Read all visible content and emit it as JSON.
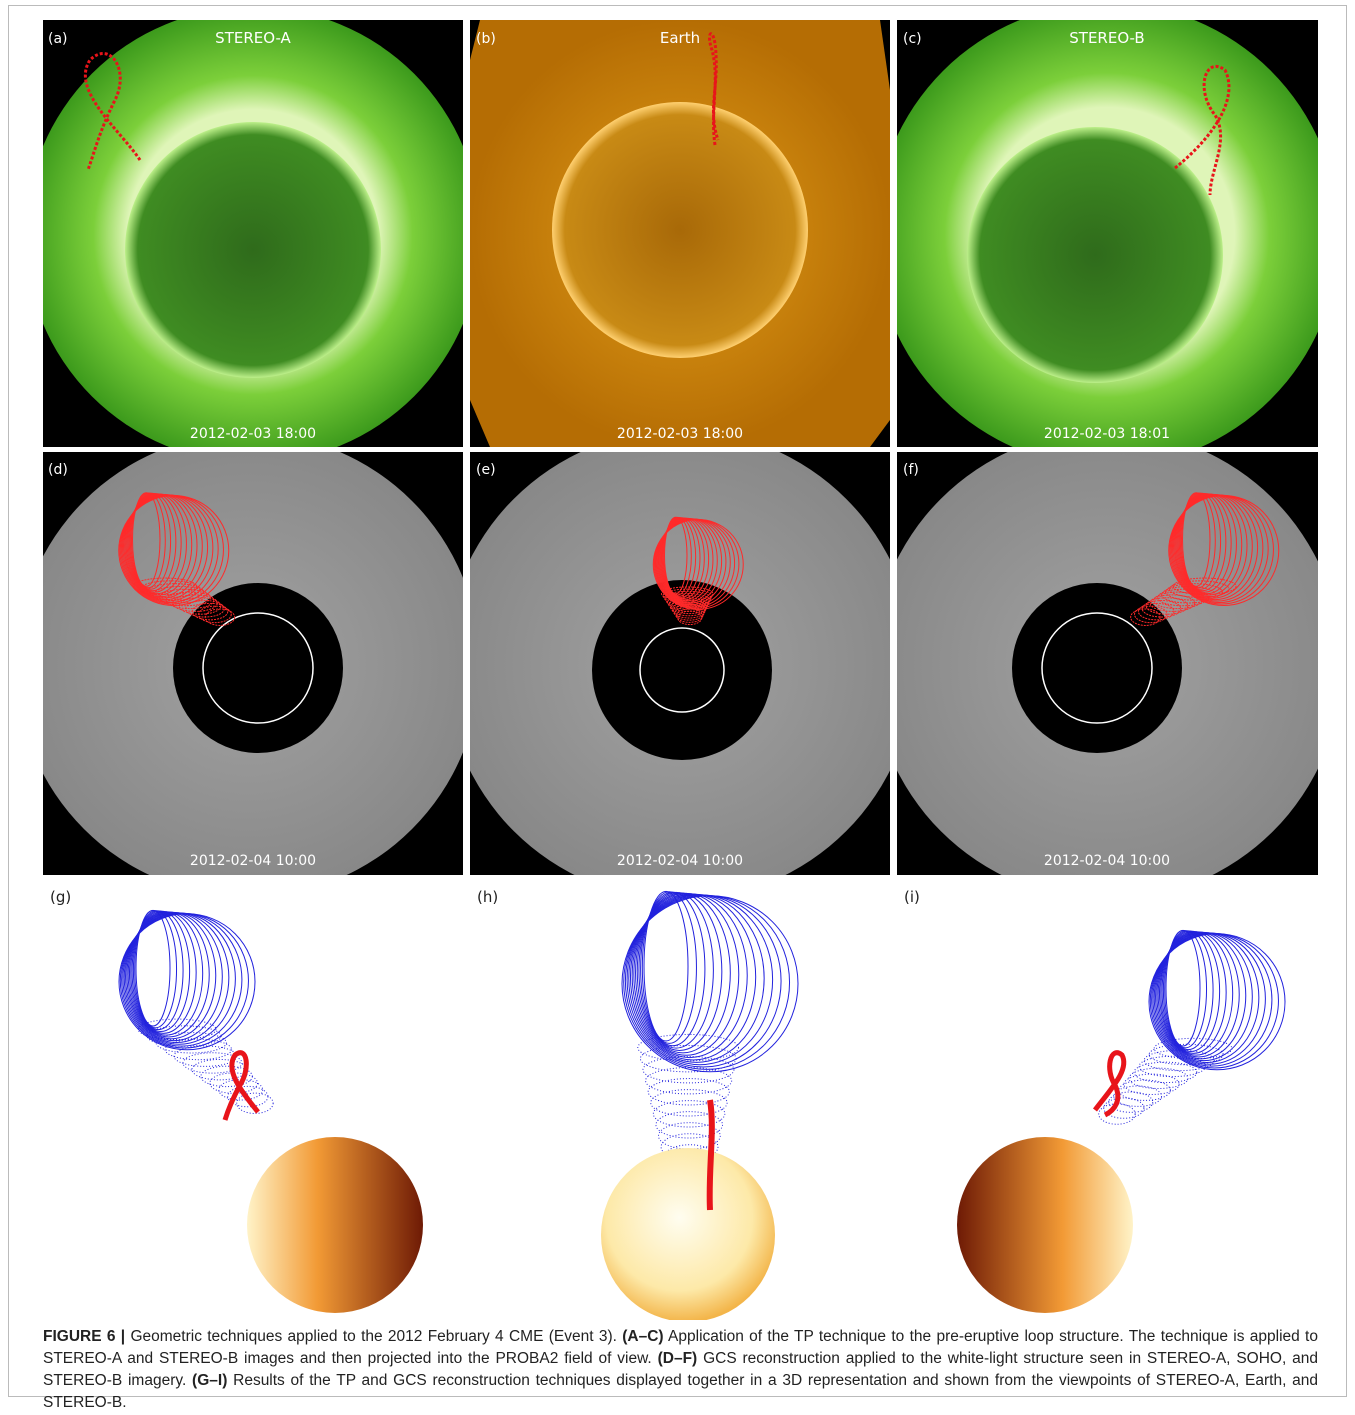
{
  "figure": {
    "panels": [
      {
        "label": "(a)",
        "title": "STEREO-A",
        "timestamp": "2012-02-03 18:00"
      },
      {
        "label": "(b)",
        "title": "Earth",
        "timestamp": "2012-02-03 18:00"
      },
      {
        "label": "(c)",
        "title": "STEREO-B",
        "timestamp": "2012-02-03 18:01"
      },
      {
        "label": "(d)",
        "timestamp": "2012-02-04 10:00"
      },
      {
        "label": "(e)",
        "timestamp": "2012-02-04 10:00"
      },
      {
        "label": "(f)",
        "timestamp": "2012-02-04 10:00"
      },
      {
        "label": "(g)"
      },
      {
        "label": "(h)"
      },
      {
        "label": "(i)"
      }
    ],
    "caption": {
      "number": "FIGURE 6 |",
      "intro": "Geometric techniques applied to the 2012 February 4 CME (Event 3).",
      "items": [
        {
          "tag": "(A–C)",
          "text": "Application of the TP technique to the pre-eruptive loop structure. The technique is applied to STEREO-A and STEREO-B images and then projected into the PROBA2 field of view."
        },
        {
          "tag": "(D–F)",
          "text": "GCS reconstruction applied to the white-light structure seen in STEREO-A, SOHO, and STEREO-B imagery."
        },
        {
          "tag": "(G–I)",
          "text": "Results of the TP and GCS reconstruction techniques displayed together in a 3D representation and shown from the viewpoints of STEREO-A, Earth, and STEREO-B."
        }
      ]
    }
  }
}
